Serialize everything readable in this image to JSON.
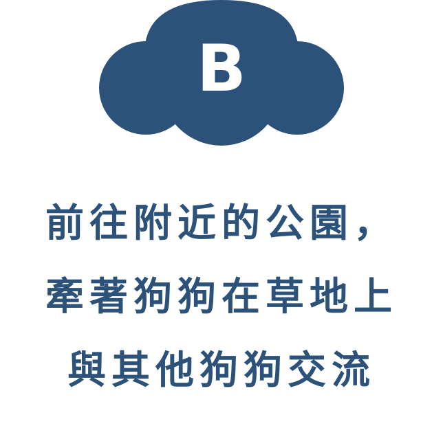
{
  "colors": {
    "brand_blue": "#2c527a",
    "background": "#ffffff",
    "letter": "#ffffff"
  },
  "badge": {
    "icon": "cloud-icon",
    "letter": "B"
  },
  "caption": {
    "lines": [
      "前往附近的公園，",
      "牽著狗狗在草地上",
      "與其他狗狗交流"
    ]
  }
}
